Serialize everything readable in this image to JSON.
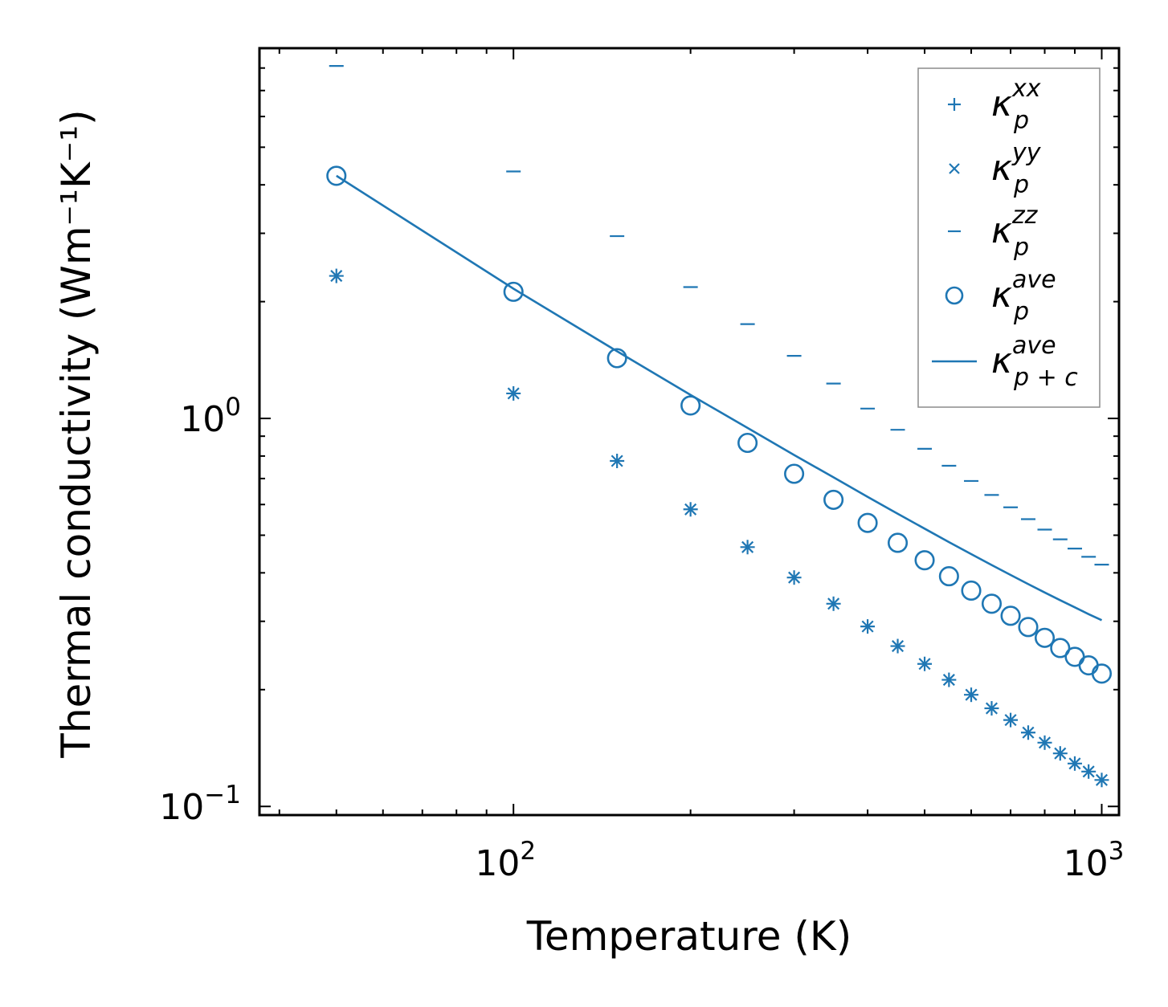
{
  "chart_data": {
    "type": "scatter",
    "title": "",
    "xlabel": "Temperature (K)",
    "ylabel": "Thermal conductivity (Wm⁻¹K⁻¹)",
    "xscale": "log",
    "yscale": "log",
    "xlim": [
      37,
      1070
    ],
    "ylim": [
      0.095,
      9.0
    ],
    "grid": false,
    "legend_position": "top-right",
    "color": "#1f77b4",
    "x_ticks": [
      {
        "value": 100,
        "base": "10",
        "exp": "2"
      },
      {
        "value": 1000,
        "base": "10",
        "exp": "3"
      }
    ],
    "y_ticks": [
      {
        "value": 0.1,
        "base": "10",
        "exp": "−1"
      },
      {
        "value": 1,
        "base": "10",
        "exp": "0"
      }
    ],
    "x": [
      50,
      100,
      150,
      200,
      250,
      300,
      350,
      400,
      450,
      500,
      550,
      600,
      650,
      700,
      750,
      800,
      850,
      900,
      950,
      1000
    ],
    "series": [
      {
        "name": "kappa_p_xx",
        "legend": {
          "base": "κ",
          "sub": "p",
          "sup": "xx"
        },
        "marker": "plus",
        "values": [
          2.33,
          1.16,
          0.777,
          0.583,
          0.466,
          0.389,
          0.333,
          0.291,
          0.259,
          0.233,
          0.212,
          0.194,
          0.179,
          0.167,
          0.155,
          0.146,
          0.137,
          0.129,
          0.123,
          0.117
        ]
      },
      {
        "name": "kappa_p_yy",
        "legend": {
          "base": "κ",
          "sub": "p",
          "sup": "yy"
        },
        "marker": "x",
        "values": [
          2.33,
          1.16,
          0.777,
          0.583,
          0.466,
          0.389,
          0.333,
          0.291,
          0.259,
          0.233,
          0.212,
          0.194,
          0.179,
          0.167,
          0.155,
          0.146,
          0.137,
          0.129,
          0.123,
          0.117
        ]
      },
      {
        "name": "kappa_p_zz",
        "legend": {
          "base": "κ",
          "sub": "p",
          "sup": "zz"
        },
        "marker": "hline",
        "values": [
          8.1,
          4.33,
          2.95,
          2.18,
          1.75,
          1.45,
          1.23,
          1.06,
          0.935,
          0.835,
          0.755,
          0.69,
          0.635,
          0.59,
          0.55,
          0.517,
          0.488,
          0.462,
          0.44,
          0.42
        ]
      },
      {
        "name": "kappa_p_ave",
        "legend": {
          "base": "κ",
          "sub": "p",
          "sup": "ave"
        },
        "marker": "circle",
        "values": [
          4.22,
          2.12,
          1.43,
          1.08,
          0.865,
          0.72,
          0.617,
          0.538,
          0.478,
          0.431,
          0.392,
          0.36,
          0.333,
          0.31,
          0.29,
          0.272,
          0.256,
          0.243,
          0.231,
          0.22
        ]
      },
      {
        "name": "kappa_p+c_ave",
        "legend": {
          "base": "κ",
          "sub": "p + c",
          "sup": "ave"
        },
        "marker": "line",
        "values": [
          4.22,
          2.16,
          1.49,
          1.15,
          0.945,
          0.805,
          0.705,
          0.628,
          0.568,
          0.52,
          0.48,
          0.447,
          0.419,
          0.395,
          0.374,
          0.356,
          0.34,
          0.326,
          0.313,
          0.302
        ]
      }
    ]
  }
}
